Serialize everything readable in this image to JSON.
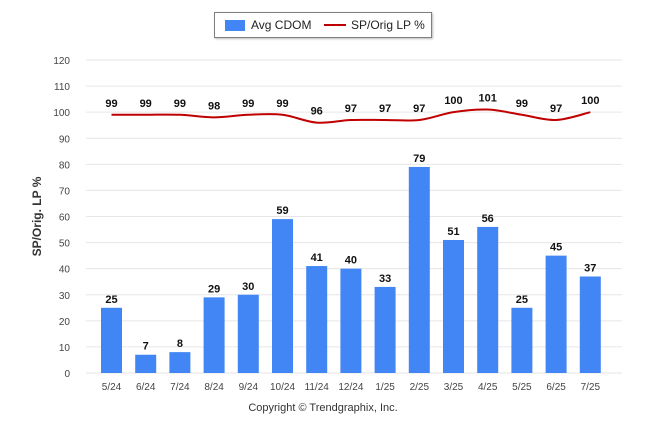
{
  "chart_data": {
    "type": "bar+line",
    "categories": [
      "5/24",
      "6/24",
      "7/24",
      "8/24",
      "9/24",
      "10/24",
      "11/24",
      "12/24",
      "1/25",
      "2/25",
      "3/25",
      "4/25",
      "5/25",
      "6/25",
      "7/25"
    ],
    "series": [
      {
        "name": "Avg CDOM",
        "type": "bar",
        "color": "#4285f4",
        "values": [
          25,
          7,
          8,
          29,
          30,
          59,
          41,
          40,
          33,
          79,
          51,
          56,
          25,
          45,
          37
        ]
      },
      {
        "name": "SP/Orig LP %",
        "type": "line",
        "color": "#c00000",
        "values": [
          99,
          99,
          99,
          98,
          99,
          99,
          96,
          97,
          97,
          97,
          100,
          101,
          99,
          97,
          100
        ]
      }
    ],
    "ylabel": "SP/Orig. LP %",
    "ylim": [
      0,
      120
    ],
    "yticks": [
      0,
      10,
      20,
      30,
      40,
      50,
      60,
      70,
      80,
      90,
      100,
      110,
      120
    ],
    "grid": true,
    "legend_position": "top-center"
  },
  "legend": {
    "bar_label": "Avg CDOM",
    "line_label": "SP/Orig LP %"
  },
  "footer": "Copyright © Trendgraphix, Inc."
}
